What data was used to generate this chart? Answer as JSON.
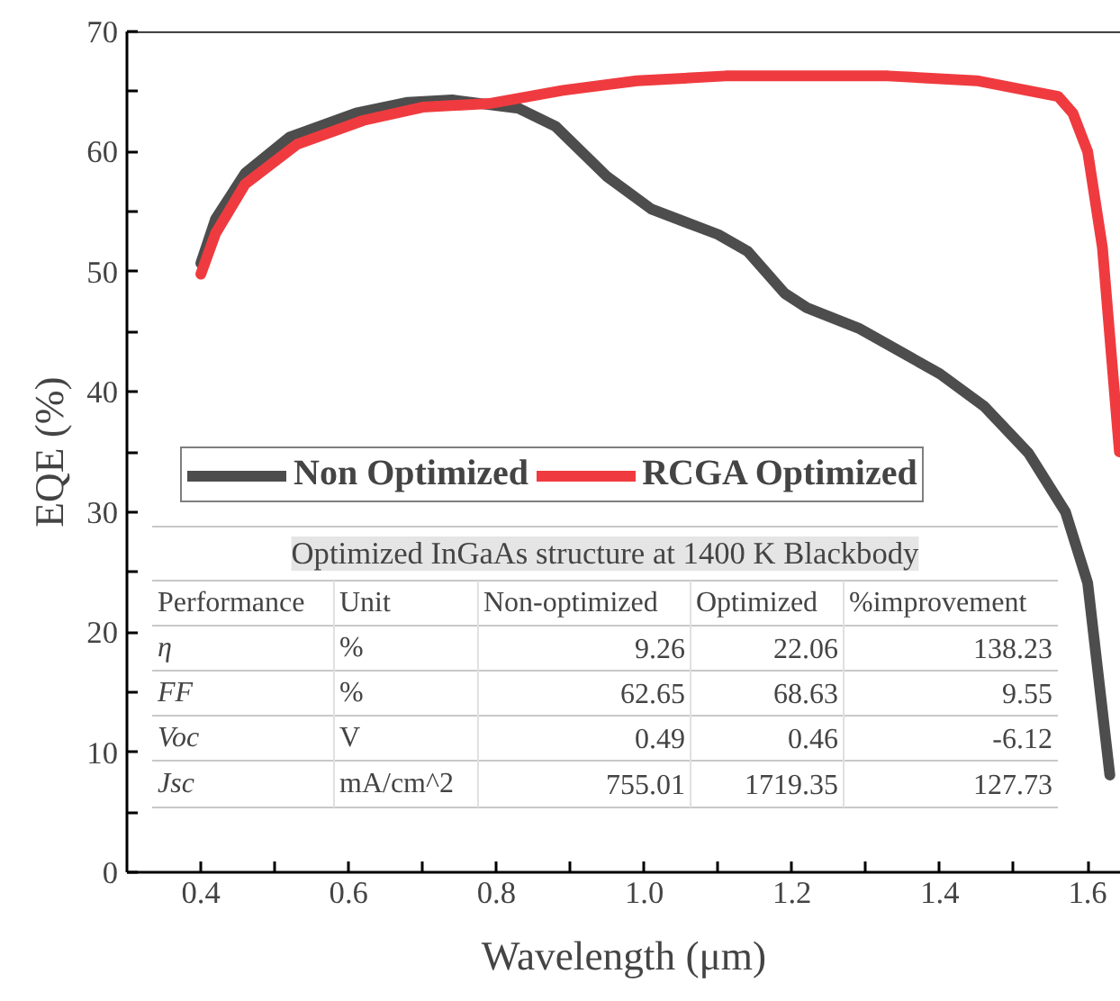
{
  "chart_data": {
    "type": "line",
    "xlabel": "Wavelength (μm)",
    "ylabel": "EQE (%)",
    "xlim": [
      0.3,
      1.645
    ],
    "ylim": [
      0,
      70
    ],
    "xticks": [
      0.4,
      {
        "value": 0.5,
        "label": null
      },
      0.6,
      {
        "value": 0.7,
        "label": null
      },
      0.8,
      {
        "value": 0.9,
        "label": null
      },
      {
        "value": 1.0,
        "label": "1.0"
      },
      {
        "value": 1.1,
        "label": null
      },
      1.2,
      {
        "value": 1.3,
        "label": null
      },
      1.4,
      {
        "value": 1.5,
        "label": null
      },
      1.6
    ],
    "yticks": [
      0,
      {
        "value": 5,
        "label": null
      },
      10,
      {
        "value": 15,
        "label": null
      },
      20,
      {
        "value": 25,
        "label": null
      },
      30,
      {
        "value": 35,
        "label": null
      },
      40,
      {
        "value": 45,
        "label": null
      },
      50,
      {
        "value": 55,
        "label": null
      },
      60,
      {
        "value": 65,
        "label": null
      },
      70
    ],
    "legend": "left",
    "grid": false,
    "line_style": "solid",
    "marker": "none",
    "series": [
      {
        "name": "Non Optimized",
        "color": "#4d4d4d",
        "x": [
          0.4,
          0.42,
          0.46,
          0.52,
          0.61,
          0.68,
          0.74,
          0.83,
          0.88,
          0.95,
          1.01,
          1.1,
          1.14,
          1.19,
          1.22,
          1.29,
          1.4,
          1.46,
          1.52,
          1.57,
          1.6,
          1.63
        ],
        "values": [
          50.7,
          54.4,
          58.2,
          61.2,
          63.2,
          64.1,
          64.3,
          63.6,
          62.1,
          57.9,
          55.2,
          53.1,
          51.7,
          48.2,
          47.0,
          45.3,
          41.5,
          38.8,
          34.9,
          30.0,
          24.1,
          8.1
        ]
      },
      {
        "name": "RCGA Optimized",
        "color": "#ef3b3f",
        "x": [
          0.4,
          0.42,
          0.46,
          0.53,
          0.62,
          0.7,
          0.79,
          0.89,
          0.99,
          1.11,
          1.33,
          1.45,
          1.56,
          1.58,
          1.6,
          1.62,
          1.643
        ],
        "values": [
          49.8,
          53.2,
          57.3,
          60.6,
          62.6,
          63.7,
          64.0,
          65.1,
          65.9,
          66.3,
          66.3,
          65.9,
          64.6,
          63.2,
          60.0,
          52,
          35
        ]
      }
    ],
    "annotations": [
      "Optimized InGaAs structure at 1400 K Blackbody",
      "Performance",
      "Unit",
      "Non-optimized",
      "Optimized",
      "%improvement",
      "η",
      "%",
      "9.26",
      "22.06",
      "138.23",
      "FF",
      "%",
      "62.65",
      "68.63",
      "9.55",
      "Voc",
      "V",
      "0.49",
      "0.46",
      "-6.12",
      "Jsc",
      "mA/cm^2",
      "755.01",
      "1719.35",
      "127.73"
    ]
  }
}
